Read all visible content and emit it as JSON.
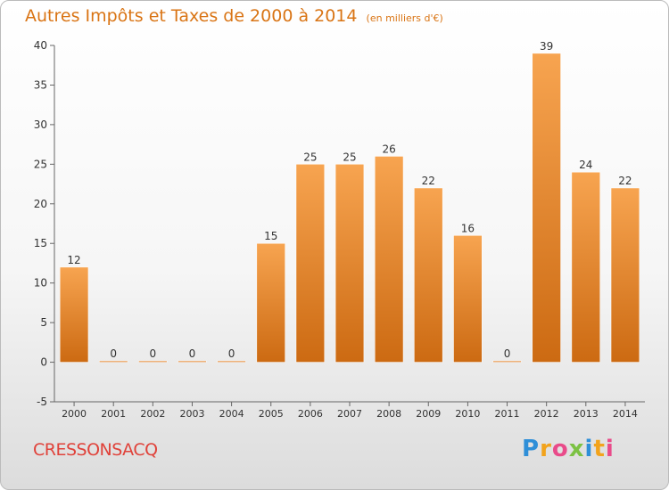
{
  "header": {
    "title": "Autres Impôts et Taxes de 2000 à 2014",
    "unit": "(en milliers d'€)"
  },
  "footer": {
    "town": "CRESSONSACQ",
    "logo": "Proxiti"
  },
  "colors": {
    "bar_top": "#f7a450",
    "bar_bottom": "#cc6a12",
    "title": "#d97414",
    "town": "#e0423a"
  },
  "chart_data": {
    "type": "bar",
    "title": "Autres Impôts et Taxes de 2000 à 2014",
    "subtitle": "(en milliers d'€)",
    "categories": [
      "2000",
      "2001",
      "2002",
      "2003",
      "2004",
      "2005",
      "2006",
      "2007",
      "2008",
      "2009",
      "2010",
      "2011",
      "2012",
      "2013",
      "2014"
    ],
    "values": [
      12,
      0,
      0,
      0,
      0,
      15,
      25,
      25,
      26,
      22,
      16,
      0,
      39,
      24,
      22
    ],
    "ylim": [
      -5,
      40
    ],
    "yticks": [
      -5,
      0,
      5,
      10,
      15,
      20,
      25,
      30,
      35,
      40
    ],
    "grid": false,
    "legend": "none"
  }
}
